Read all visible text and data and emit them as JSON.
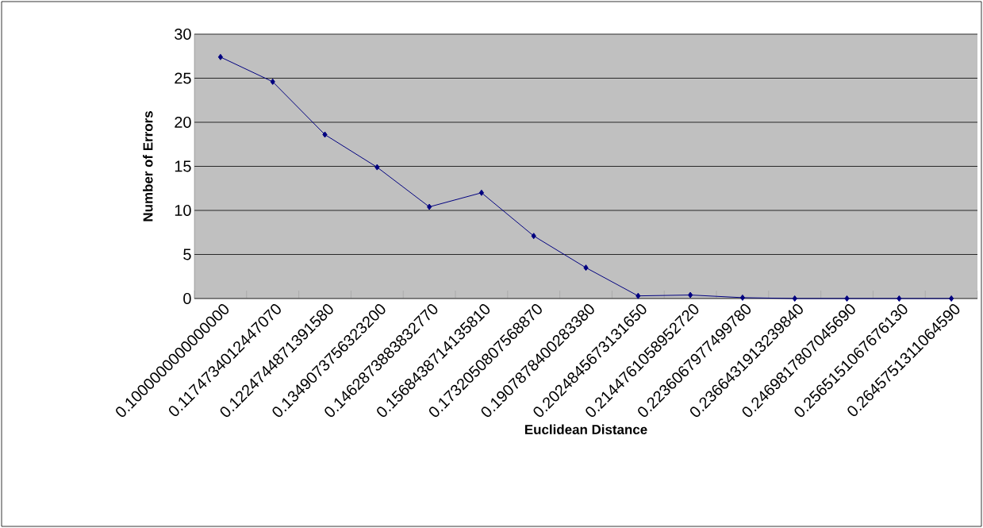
{
  "chart_data": {
    "type": "line",
    "xlabel": "Euclidean Distance",
    "ylabel": "Number of Errors",
    "categories": [
      "0.1000000000000000",
      "0.1174734012447070",
      "0.1224744871391580",
      "0.1349073756323200",
      "0.1462873883832770",
      "0.1568438714135810",
      "0.1732050807568870",
      "0.1907878400283380",
      "0.2024845673131650",
      "0.2144761058952720",
      "0.2236067977499780",
      "0.2366431913239840",
      "0.2469817807045690",
      "0.2565151067676130",
      "0.2645751311064590"
    ],
    "series": [
      {
        "color": "#000080",
        "values": [
          27.4,
          24.6,
          18.6,
          14.9,
          10.4,
          12.0,
          7.1,
          3.5,
          0.3,
          0.4,
          0.1,
          0,
          0,
          0,
          0
        ]
      }
    ],
    "ylim": [
      0,
      30
    ],
    "yticks": [
      0,
      5,
      10,
      15,
      20,
      25,
      30
    ],
    "grid": "y",
    "marker": "diamond",
    "line_style": "solid"
  }
}
